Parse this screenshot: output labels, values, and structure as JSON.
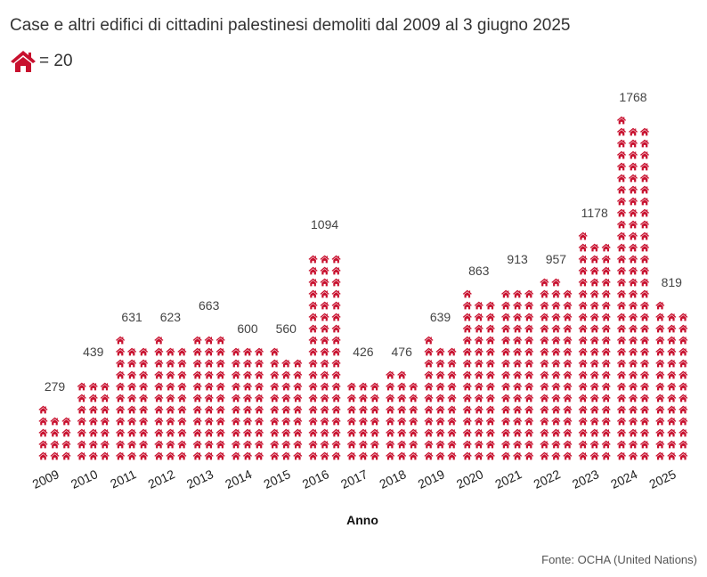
{
  "chart_data": {
    "type": "bar",
    "subtype": "pictogram",
    "title": "Case e altri edifici di cittadini palestinesi demoliti dal 2009 al 3 giugno 2025",
    "legend": {
      "icon": "house-icon",
      "text": "= 20",
      "unit_value": 20
    },
    "icons_per_row": 3,
    "categories": [
      "2009",
      "2010",
      "2011",
      "2012",
      "2013",
      "2014",
      "2015",
      "2016",
      "2017",
      "2018",
      "2019",
      "2020",
      "2021",
      "2022",
      "2023",
      "2024",
      "2025"
    ],
    "values": [
      279,
      439,
      631,
      623,
      663,
      600,
      560,
      1094,
      426,
      476,
      639,
      863,
      913,
      957,
      1178,
      1768,
      819
    ],
    "xlabel": "Anno",
    "ylabel": "",
    "source": "Fonte: OCHA (United Nations)",
    "color": "#c8102e",
    "grid": false
  }
}
